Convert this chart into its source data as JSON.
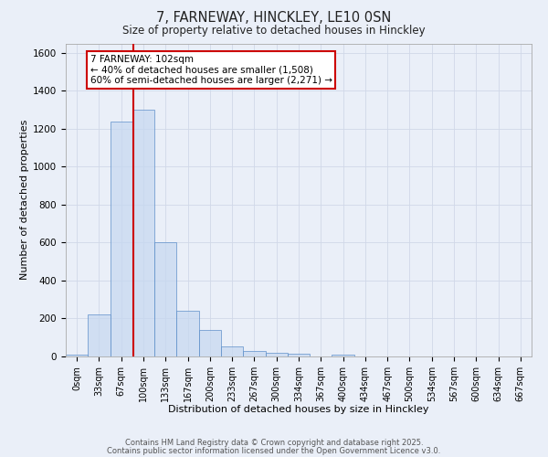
{
  "title1": "7, FARNEWAY, HINCKLEY, LE10 0SN",
  "title2": "Size of property relative to detached houses in Hinckley",
  "xlabel": "Distribution of detached houses by size in Hinckley",
  "ylabel": "Number of detached properties",
  "bar_labels": [
    "0sqm",
    "33sqm",
    "67sqm",
    "100sqm",
    "133sqm",
    "167sqm",
    "200sqm",
    "233sqm",
    "267sqm",
    "300sqm",
    "334sqm",
    "367sqm",
    "400sqm",
    "434sqm",
    "467sqm",
    "500sqm",
    "534sqm",
    "567sqm",
    "600sqm",
    "634sqm",
    "667sqm"
  ],
  "bar_values": [
    10,
    220,
    1240,
    1300,
    600,
    240,
    140,
    55,
    30,
    20,
    15,
    0,
    10,
    0,
    0,
    0,
    0,
    0,
    0,
    0,
    0
  ],
  "bar_color": "#c5d8f0",
  "bar_edge_color": "#5b8dc8",
  "bar_edge_width": 0.7,
  "red_line_x": 3.05,
  "annotation_text": "7 FARNEWAY: 102sqm\n← 40% of detached houses are smaller (1,508)\n60% of semi-detached houses are larger (2,271) →",
  "annotation_box_color": "#ffffff",
  "annotation_box_edge": "#cc0000",
  "ylim": [
    0,
    1650
  ],
  "yticks": [
    0,
    200,
    400,
    600,
    800,
    1000,
    1200,
    1400,
    1600
  ],
  "grid_color": "#d0d8e8",
  "bg_color": "#eaeff8",
  "footer1": "Contains HM Land Registry data © Crown copyright and database right 2025.",
  "footer2": "Contains public sector information licensed under the Open Government Licence v3.0."
}
